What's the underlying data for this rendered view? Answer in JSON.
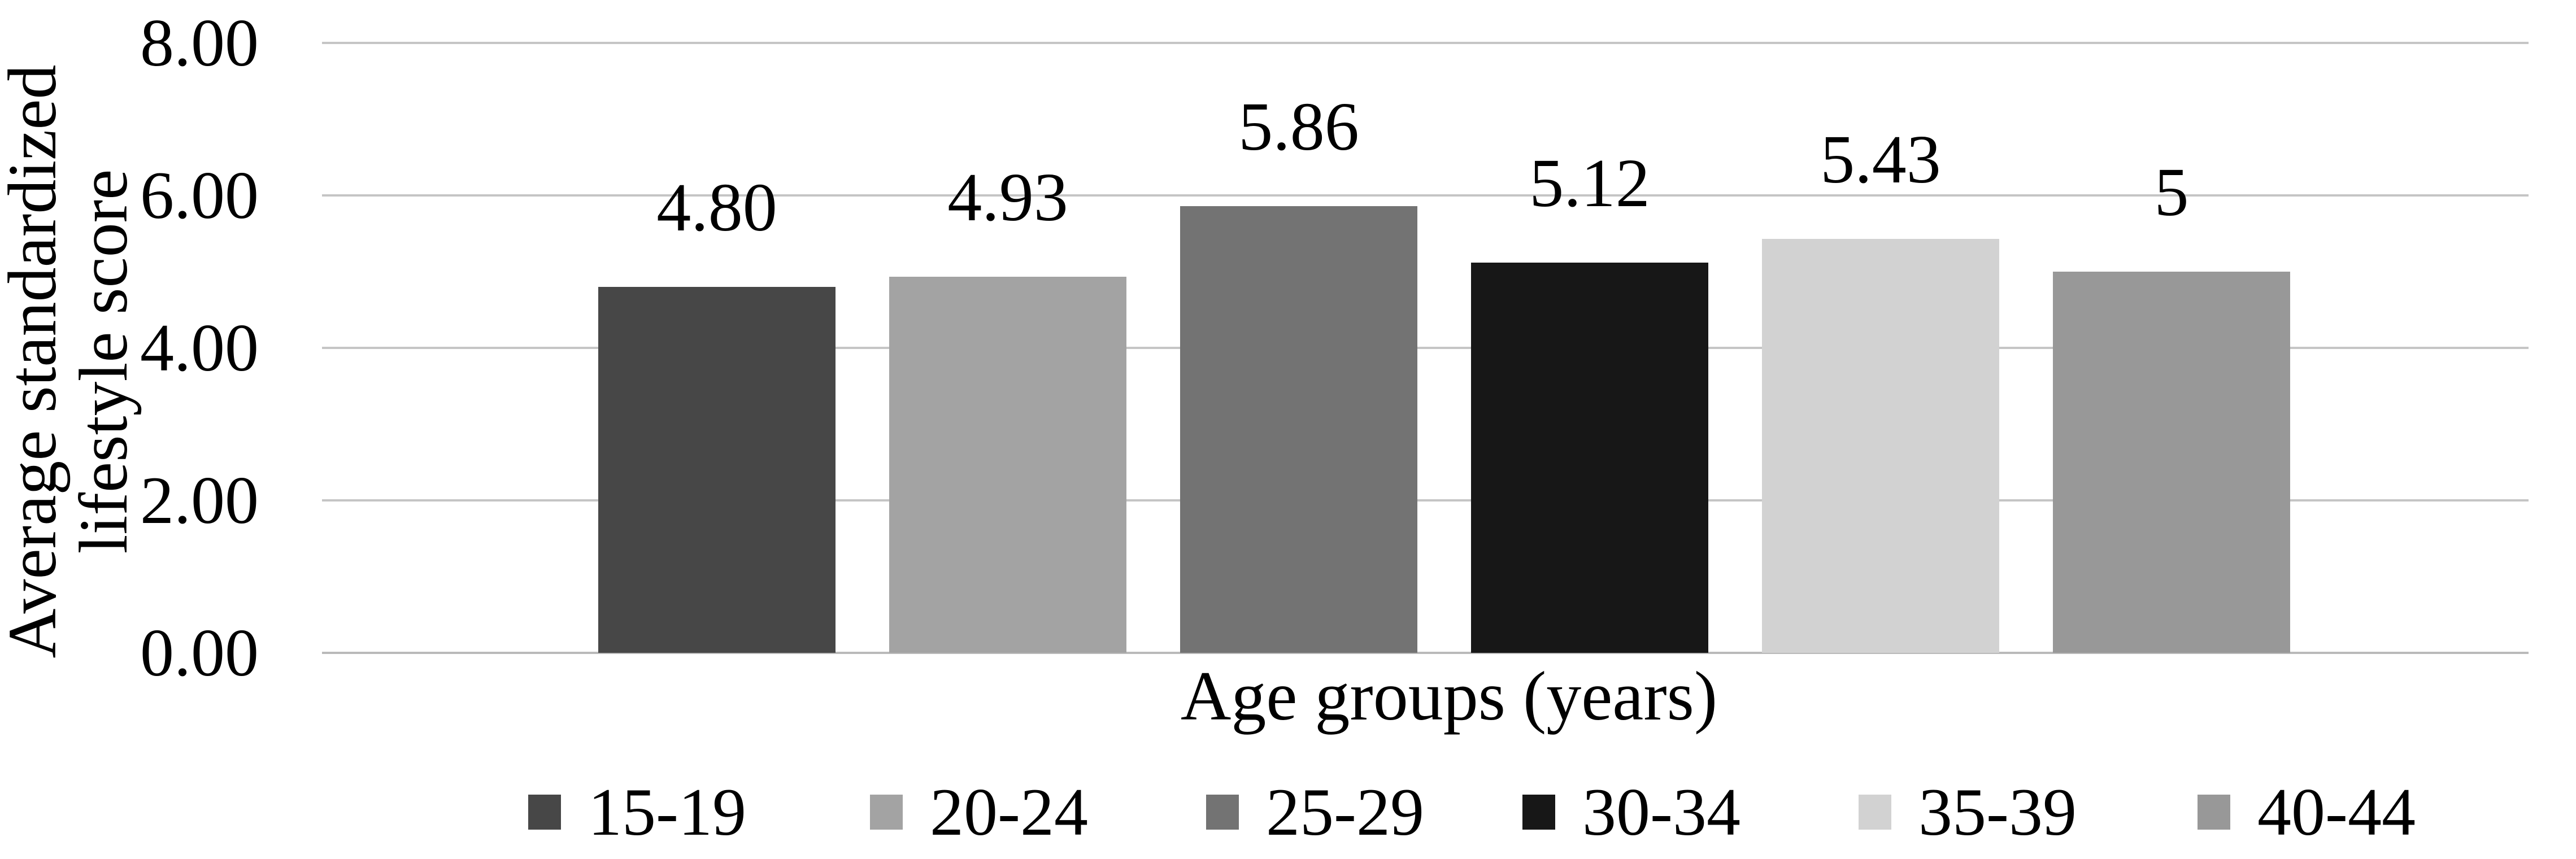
{
  "chart_data": {
    "type": "bar",
    "title": "",
    "categories": [
      "15-19",
      "20-24",
      "25-29",
      "30-34",
      "35-39",
      "40-44"
    ],
    "values": [
      4.8,
      4.93,
      5.86,
      5.12,
      5.43,
      5
    ],
    "value_labels": [
      "4.80",
      "4.93",
      "5.86",
      "5.12",
      "5.43",
      "5"
    ],
    "bar_colors": [
      "#474747",
      "#a3a3a3",
      "#737373",
      "#171717",
      "#d2d2d2",
      "#989898"
    ],
    "xlabel": "Age groups (years)",
    "ylabel": "Average standardized lifestyle score",
    "ylabel_lines": [
      "Average standardized",
      "lifestyle score"
    ],
    "ylim": [
      0,
      8
    ],
    "yticks": [
      {
        "value": 0,
        "label": "0.00"
      },
      {
        "value": 2,
        "label": "2.00"
      },
      {
        "value": 4,
        "label": "4.00"
      },
      {
        "value": 6,
        "label": "6.00"
      },
      {
        "value": 8,
        "label": "8.00"
      }
    ],
    "grid": "horizontal",
    "gridline_color": "#c5c5c5",
    "legend_position": "bottom",
    "text_color": "#000000",
    "background_color": "#ffffff"
  }
}
